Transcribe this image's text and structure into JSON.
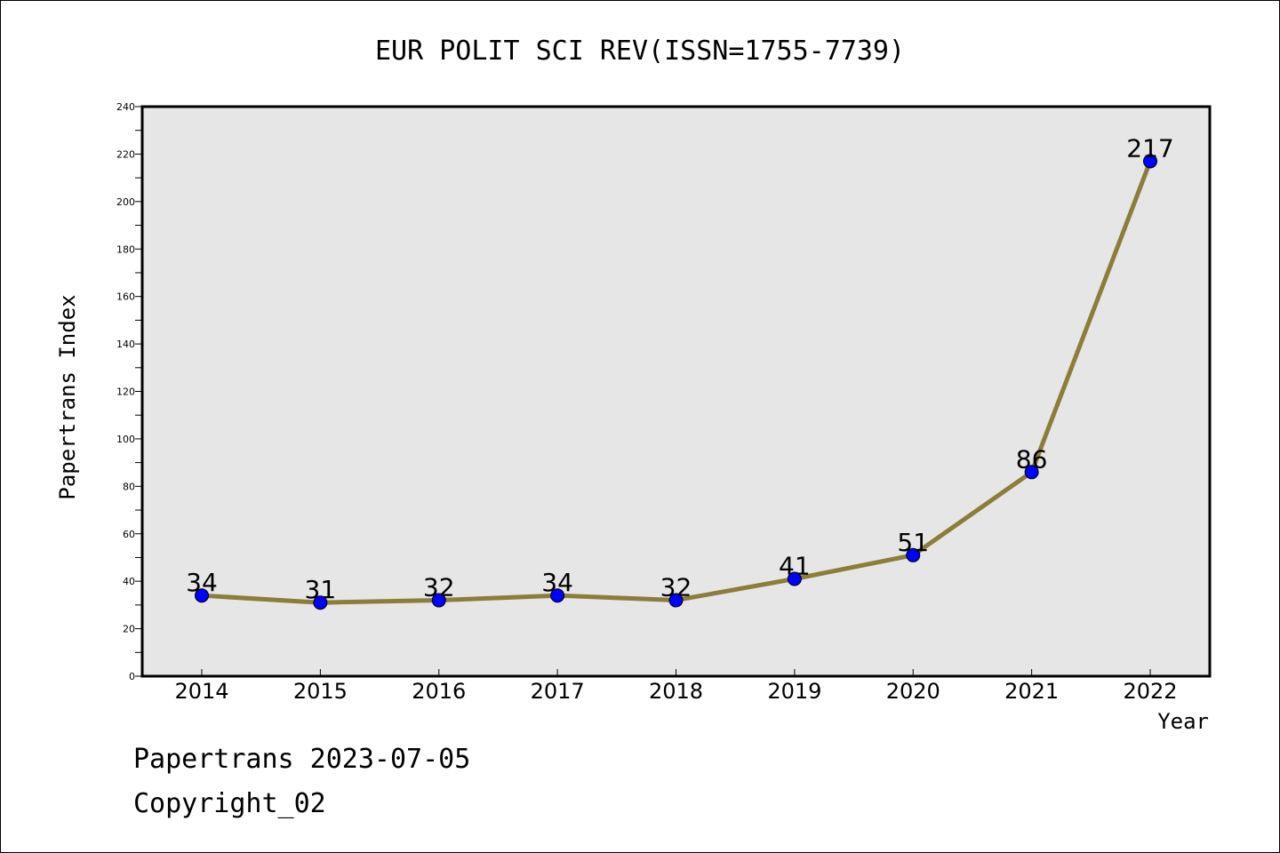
{
  "chart_data": {
    "type": "line",
    "title": "EUR POLIT SCI REV(ISSN=1755-7739)",
    "xlabel": "Year",
    "ylabel": "Papertrans Index",
    "categories": [
      "2014",
      "2015",
      "2016",
      "2017",
      "2018",
      "2019",
      "2020",
      "2021",
      "2022"
    ],
    "values": [
      34,
      31,
      32,
      34,
      32,
      41,
      51,
      86,
      217
    ],
    "data_labels": [
      "34",
      "31",
      "32",
      "34",
      "32",
      "41",
      "51",
      "86",
      "217"
    ],
    "ylim": [
      0,
      240
    ],
    "yticks": [
      "0",
      "20",
      "40",
      "60",
      "80",
      "100",
      "120",
      "140",
      "160",
      "180",
      "200",
      "220",
      "240"
    ],
    "grid": false,
    "line_color": "#8B7D3A",
    "marker_color": "#0000FF",
    "plot_background": "#E6E6E6"
  },
  "footer": {
    "date_line": "Papertrans 2023-07-05",
    "copyright_line": "Copyright_02"
  }
}
